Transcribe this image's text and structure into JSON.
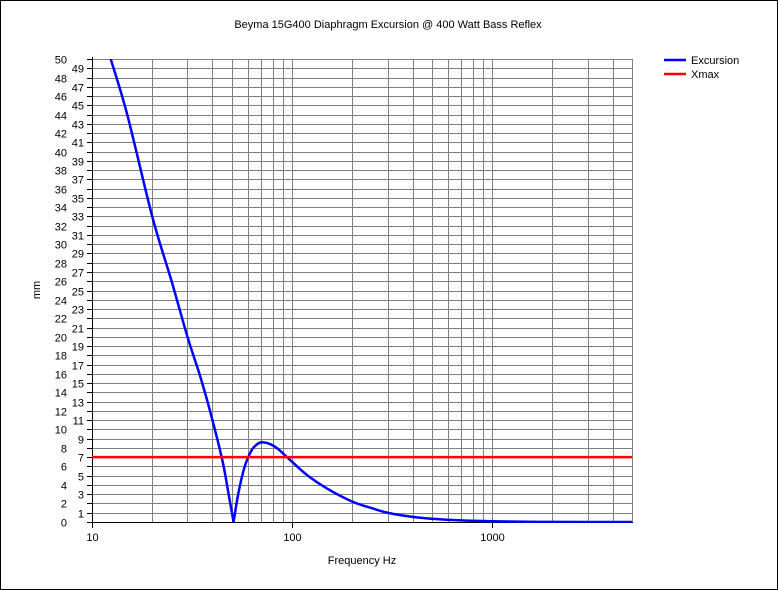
{
  "chart_data": {
    "type": "line",
    "title": "Beyma 15G400 Diaphragm Excursion @ 400 Watt Bass Reflex",
    "xlabel": "Frequency Hz",
    "ylabel": "mm",
    "xscale": "log",
    "xlim": [
      10,
      5000
    ],
    "ylim": [
      0,
      50
    ],
    "x_tick_labels": [
      "10",
      "100",
      "1000"
    ],
    "x_ticks": [
      10,
      100,
      1000
    ],
    "y_ticks_step": 1,
    "grid": true,
    "legend": "top-right",
    "series": [
      {
        "name": "Excursion",
        "color": "#0000ff",
        "x": [
          12.4,
          15,
          20,
          25,
          30,
          35,
          40,
          45,
          48,
          51,
          54,
          58,
          63,
          68,
          72,
          78,
          85,
          100,
          120,
          150,
          200,
          250,
          300,
          400,
          500,
          700,
          1000,
          1500,
          2000,
          3000,
          5000
        ],
        "y": [
          50,
          44,
          33,
          26,
          20,
          15.5,
          11,
          6.5,
          3.2,
          0,
          3.2,
          6.0,
          7.8,
          8.5,
          8.6,
          8.4,
          7.9,
          6.5,
          5.0,
          3.6,
          2.2,
          1.5,
          1.0,
          0.55,
          0.35,
          0.17,
          0.08,
          0.03,
          0.015,
          0.005,
          0
        ]
      },
      {
        "name": "Xmax",
        "color": "#ff0000",
        "x": [
          10,
          5000
        ],
        "y": [
          7,
          7
        ]
      }
    ]
  }
}
